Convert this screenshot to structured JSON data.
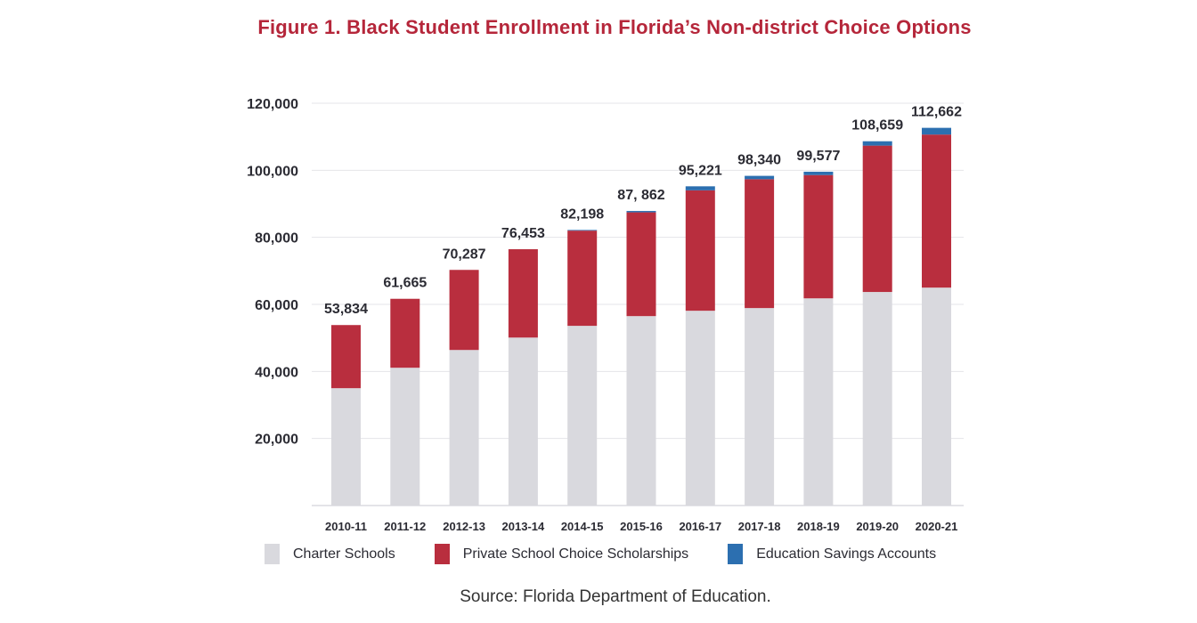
{
  "title": "Figure 1. Black Student Enrollment in Florida’s Non-district Choice Options",
  "source": "Source: Florida Department of Education.",
  "chart_data": {
    "type": "bar",
    "stacked": true,
    "title": "Figure 1. Black Student Enrollment in Florida’s Non-district Choice Options",
    "xlabel": "",
    "ylabel": "",
    "ylim": [
      0,
      120000
    ],
    "yticks": [
      20000,
      40000,
      60000,
      80000,
      100000,
      120000
    ],
    "ytick_labels": [
      "20,000",
      "40,000",
      "60,000",
      "80,000",
      "100,000",
      "120,000"
    ],
    "grid": true,
    "legend_position": "bottom",
    "categories": [
      "2010-11",
      "2011-12",
      "2012-13",
      "2013-14",
      "2014-15",
      "2015-16",
      "2016-17",
      "2017-18",
      "2018-19",
      "2019-20",
      "2020-21"
    ],
    "series": [
      {
        "name": "Charter Schools",
        "color": "#d9d9de",
        "values": [
          35000,
          41100,
          46400,
          50100,
          53600,
          56500,
          58100,
          58900,
          61800,
          63700,
          65000
        ]
      },
      {
        "name": "Private School Choice Scholarships",
        "color": "#b92e3e",
        "values": [
          18834,
          20565,
          23887,
          26353,
          28398,
          30962,
          35921,
          38440,
          36777,
          43659,
          45662
        ]
      },
      {
        "name": "Education Savings Accounts",
        "color": "#2c6fb0",
        "values": [
          0,
          0,
          0,
          0,
          200,
          400,
          1200,
          1000,
          1000,
          1300,
          2000
        ]
      }
    ],
    "totals": [
      53834,
      61665,
      70287,
      76453,
      82198,
      87862,
      95221,
      98340,
      99577,
      108659,
      112662
    ],
    "total_labels": [
      "53,834",
      "61,665",
      "70,287",
      "76,453",
      "82,198",
      "87, 862",
      "95,221",
      "98,340",
      "99,577",
      "108,659",
      "112,662"
    ]
  }
}
